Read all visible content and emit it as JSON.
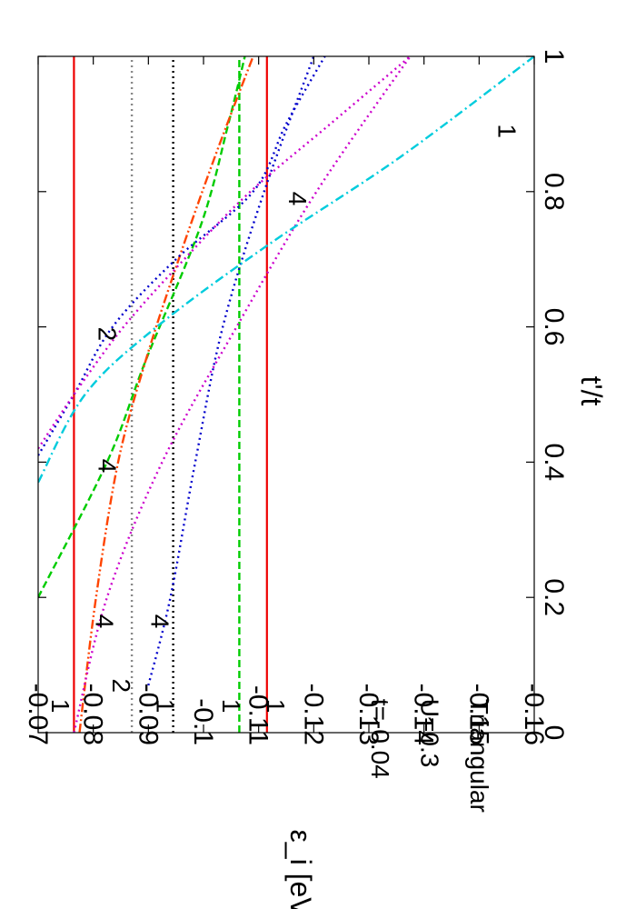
{
  "chart_data": {
    "type": "line",
    "rotated": "90deg-clockwise",
    "xlabel": "t'/t",
    "ylabel": "ε_i [eV]",
    "xlim": [
      0,
      1
    ],
    "ylim": [
      -0.16,
      -0.07
    ],
    "x_ticks": [
      "0",
      "0.2",
      "0.4",
      "0.6",
      "0.8",
      "1"
    ],
    "y_ticks": [
      "-0.07",
      "-0.08",
      "-0.09",
      "-0.1",
      "-0.11",
      "-0.12",
      "-0.13",
      "-0.14",
      "-0.15",
      "-0.16"
    ],
    "grid": false,
    "legend": "none",
    "series": [
      {
        "color": "#ee0000",
        "style": "solid",
        "x": [
          0,
          1
        ],
        "y": [
          -0.0765,
          -0.0765
        ]
      },
      {
        "color": "#ee0000",
        "style": "solid",
        "x": [
          0,
          1
        ],
        "y": [
          -0.1115,
          -0.1115
        ]
      },
      {
        "color": "#888888",
        "style": "dotted",
        "x": [
          0,
          1
        ],
        "y": [
          -0.087,
          -0.087
        ]
      },
      {
        "color": "#000000",
        "style": "dotted",
        "x": [
          0,
          1
        ],
        "y": [
          -0.0945,
          -0.0945
        ]
      },
      {
        "color": "#00cc00",
        "style": "dashed",
        "x": [
          0,
          1
        ],
        "y": [
          -0.1065,
          -0.1065
        ]
      },
      {
        "color": "#00cc00",
        "style": "dashed",
        "x": [
          0.2,
          0.4,
          0.55,
          0.75,
          0.9,
          1.0
        ],
        "y": [
          -0.07,
          -0.0825,
          -0.0895,
          -0.0995,
          -0.1045,
          -0.1075
        ]
      },
      {
        "color": "#ff4400",
        "style": "dashdotdot",
        "x": [
          0,
          0.2,
          0.4,
          0.55,
          0.7,
          0.85,
          1.0
        ],
        "y": [
          -0.0775,
          -0.0805,
          -0.0845,
          -0.0895,
          -0.0955,
          -0.102,
          -0.109
        ]
      },
      {
        "color": "#0000cc",
        "style": "dotted",
        "x": [
          0.07,
          0.2,
          0.4,
          0.6,
          0.8,
          1.0
        ],
        "y": [
          -0.09,
          -0.094,
          -0.0985,
          -0.1035,
          -0.111,
          -0.12
        ]
      },
      {
        "color": "#0000cc",
        "style": "dotted",
        "x": [
          0.41,
          0.5,
          0.6,
          0.7,
          0.8,
          0.9,
          1.0
        ],
        "y": [
          -0.07,
          -0.0765,
          -0.0835,
          -0.095,
          -0.109,
          -0.115,
          -0.122
        ]
      },
      {
        "color": "#cc00cc",
        "style": "dotted",
        "x": [
          0,
          0.2,
          0.4,
          0.6,
          0.8,
          1.0
        ],
        "y": [
          -0.0765,
          -0.0825,
          -0.0925,
          -0.106,
          -0.1205,
          -0.1375
        ]
      },
      {
        "color": "#cc00cc",
        "style": "dotted",
        "x": [
          0.42,
          0.5,
          0.6,
          0.7,
          0.8,
          0.9,
          1.0
        ],
        "y": [
          -0.07,
          -0.0765,
          -0.0855,
          -0.0965,
          -0.1085,
          -0.123,
          -0.1375
        ]
      },
      {
        "color": "#00ccdd",
        "style": "dashdot",
        "x": [
          0.37,
          0.5,
          0.6,
          0.72,
          0.85,
          1.0
        ],
        "y": [
          -0.07,
          -0.0785,
          -0.0915,
          -0.1115,
          -0.1355,
          -0.16
        ]
      }
    ],
    "annotations": [
      {
        "text": "1",
        "x": 0.05,
        "y": -0.0725
      },
      {
        "text": "2",
        "x": 0.08,
        "y": -0.0835
      },
      {
        "text": "1",
        "x": 0.05,
        "y": -0.0915
      },
      {
        "text": "1",
        "x": 0.05,
        "y": -0.1035
      },
      {
        "text": "1",
        "x": 0.05,
        "y": -0.1115
      },
      {
        "text": "4",
        "x": 0.175,
        "y": -0.0805
      },
      {
        "text": "4",
        "x": 0.175,
        "y": -0.0905
      },
      {
        "text": "4",
        "x": 0.405,
        "y": -0.081
      },
      {
        "text": "2",
        "x": 0.6,
        "y": -0.081
      },
      {
        "text": "4",
        "x": 0.8,
        "y": -0.1155
      },
      {
        "text": "1",
        "x": 0.9,
        "y": -0.1535
      },
      {
        "text": "t=-0.04",
        "x": 0.05,
        "y": -0.1305
      },
      {
        "text": "U=0.3",
        "x": 0.05,
        "y": -0.1395
      },
      {
        "text": "Triangular",
        "x": 0.05,
        "y": -0.1485
      }
    ]
  }
}
